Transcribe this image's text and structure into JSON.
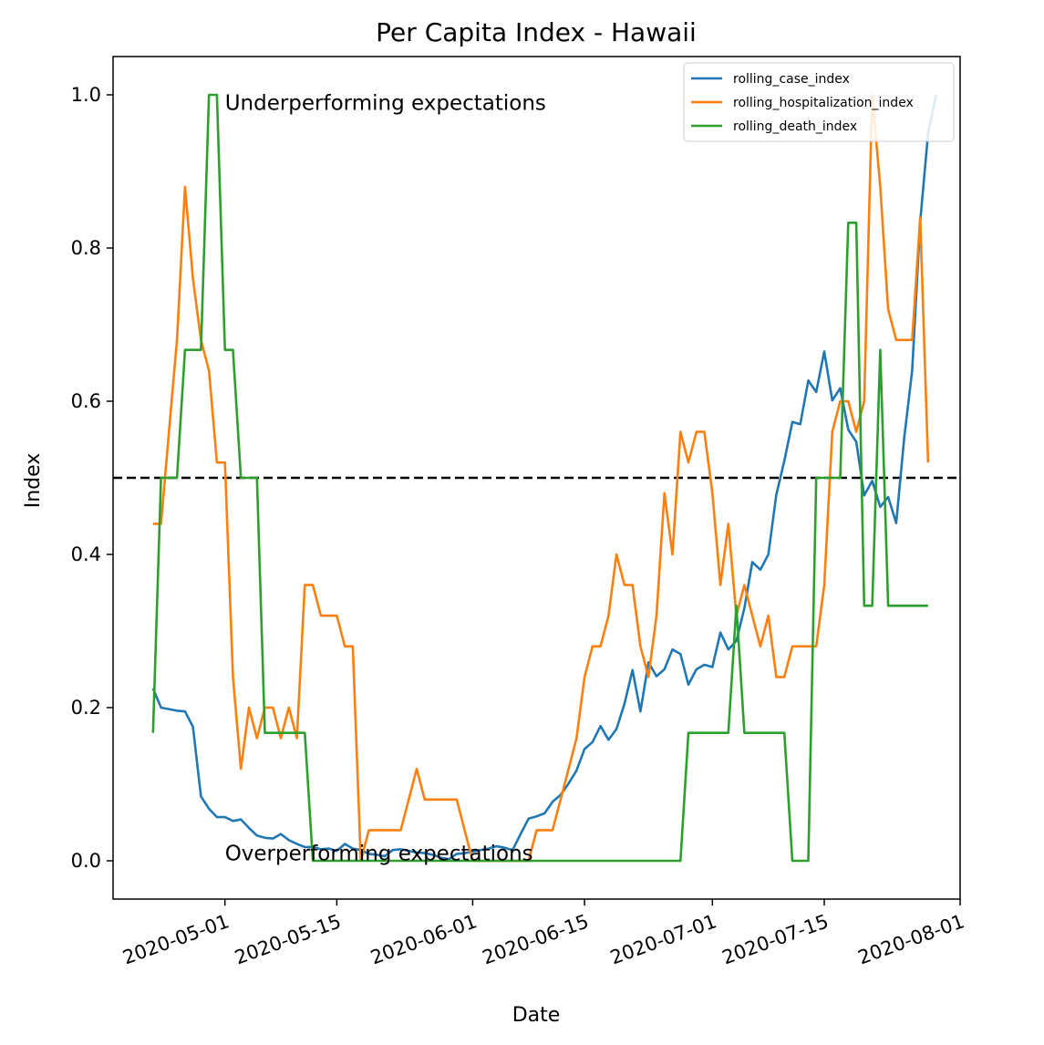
{
  "chart_data": {
    "type": "line",
    "title": "Per Capita Index - Hawaii",
    "xlabel": "Date",
    "ylabel": "Index",
    "x_axis": {
      "type": "date",
      "range": [
        "2020-04-17",
        "2020-08-01"
      ],
      "ticks": [
        "2020-05-01",
        "2020-05-15",
        "2020-06-01",
        "2020-06-15",
        "2020-07-01",
        "2020-07-15",
        "2020-08-01"
      ]
    },
    "y_axis": {
      "range": [
        -0.05,
        1.05
      ],
      "ticks": [
        0.0,
        0.2,
        0.4,
        0.6,
        0.8,
        1.0
      ],
      "tick_labels": [
        "0.0",
        "0.2",
        "0.4",
        "0.6",
        "0.8",
        "1.0"
      ]
    },
    "reference_line": {
      "y": 0.5,
      "style": "dashed",
      "color": "#000000"
    },
    "annotations": [
      {
        "text": "Underperforming expectations",
        "x": "2020-05-01",
        "y": 0.99
      },
      {
        "text": "Overperforming expectations",
        "x": "2020-05-01",
        "y": 0.01
      }
    ],
    "legend": {
      "position": "top-right"
    },
    "grid": false,
    "series": [
      {
        "name": "rolling_case_index",
        "color": "#1f77b4",
        "points": [
          [
            "2020-04-22",
            0.225
          ],
          [
            "2020-04-23",
            0.2
          ],
          [
            "2020-04-25",
            0.196
          ],
          [
            "2020-04-26",
            0.195
          ],
          [
            "2020-04-27",
            0.175
          ],
          [
            "2020-04-28",
            0.084
          ],
          [
            "2020-04-29",
            0.068
          ],
          [
            "2020-04-30",
            0.057
          ],
          [
            "2020-05-01",
            0.057
          ],
          [
            "2020-05-02",
            0.052
          ],
          [
            "2020-05-03",
            0.054
          ],
          [
            "2020-05-04",
            0.043
          ],
          [
            "2020-05-05",
            0.033
          ],
          [
            "2020-05-06",
            0.03
          ],
          [
            "2020-05-07",
            0.029
          ],
          [
            "2020-05-08",
            0.035
          ],
          [
            "2020-05-09",
            0.027
          ],
          [
            "2020-05-10",
            0.022
          ],
          [
            "2020-05-11",
            0.018
          ],
          [
            "2020-05-12",
            0.018
          ],
          [
            "2020-05-13",
            0.015
          ],
          [
            "2020-05-14",
            0.016
          ],
          [
            "2020-05-15",
            0.013
          ],
          [
            "2020-05-16",
            0.022
          ],
          [
            "2020-05-17",
            0.016
          ],
          [
            "2020-05-18",
            0.014
          ],
          [
            "2020-05-19",
            0.009
          ],
          [
            "2020-05-20",
            0.008
          ],
          [
            "2020-05-21",
            0.006
          ],
          [
            "2020-05-22",
            0.014
          ],
          [
            "2020-05-23",
            0.015
          ],
          [
            "2020-05-24",
            0.013
          ],
          [
            "2020-05-25",
            0.011
          ],
          [
            "2020-05-26",
            0.01
          ],
          [
            "2020-05-27",
            0.008
          ],
          [
            "2020-05-28",
            0.004
          ],
          [
            "2020-05-29",
            0.002
          ],
          [
            "2020-05-30",
            0.009
          ],
          [
            "2020-05-31",
            0.01
          ],
          [
            "2020-06-01",
            0.012
          ],
          [
            "2020-06-02",
            0.014
          ],
          [
            "2020-06-03",
            0.016
          ],
          [
            "2020-06-04",
            0.019
          ],
          [
            "2020-06-05",
            0.017
          ],
          [
            "2020-06-06",
            0.014
          ],
          [
            "2020-06-07",
            0.035
          ],
          [
            "2020-06-08",
            0.055
          ],
          [
            "2020-06-09",
            0.058
          ],
          [
            "2020-06-10",
            0.062
          ],
          [
            "2020-06-11",
            0.077
          ],
          [
            "2020-06-12",
            0.086
          ],
          [
            "2020-06-13",
            0.101
          ],
          [
            "2020-06-14",
            0.118
          ],
          [
            "2020-06-15",
            0.146
          ],
          [
            "2020-06-16",
            0.155
          ],
          [
            "2020-06-17",
            0.176
          ],
          [
            "2020-06-18",
            0.158
          ],
          [
            "2020-06-19",
            0.172
          ],
          [
            "2020-06-20",
            0.205
          ],
          [
            "2020-06-21",
            0.249
          ],
          [
            "2020-06-22",
            0.195
          ],
          [
            "2020-06-23",
            0.259
          ],
          [
            "2020-06-24",
            0.241
          ],
          [
            "2020-06-25",
            0.25
          ],
          [
            "2020-06-26",
            0.276
          ],
          [
            "2020-06-27",
            0.27
          ],
          [
            "2020-06-28",
            0.23
          ],
          [
            "2020-06-29",
            0.25
          ],
          [
            "2020-06-30",
            0.256
          ],
          [
            "2020-07-01",
            0.253
          ],
          [
            "2020-07-02",
            0.298
          ],
          [
            "2020-07-03",
            0.276
          ],
          [
            "2020-07-04",
            0.287
          ],
          [
            "2020-07-05",
            0.33
          ],
          [
            "2020-07-06",
            0.39
          ],
          [
            "2020-07-07",
            0.38
          ],
          [
            "2020-07-08",
            0.4
          ],
          [
            "2020-07-09",
            0.478
          ],
          [
            "2020-07-10",
            0.522
          ],
          [
            "2020-07-11",
            0.573
          ],
          [
            "2020-07-12",
            0.57
          ],
          [
            "2020-07-13",
            0.627
          ],
          [
            "2020-07-14",
            0.612
          ],
          [
            "2020-07-15",
            0.665
          ],
          [
            "2020-07-16",
            0.601
          ],
          [
            "2020-07-17",
            0.617
          ],
          [
            "2020-07-18",
            0.563
          ],
          [
            "2020-07-19",
            0.547
          ],
          [
            "2020-07-20",
            0.477
          ],
          [
            "2020-07-21",
            0.496
          ],
          [
            "2020-07-22",
            0.462
          ],
          [
            "2020-07-23",
            0.475
          ],
          [
            "2020-07-24",
            0.441
          ],
          [
            "2020-07-25",
            0.552
          ],
          [
            "2020-07-26",
            0.64
          ],
          [
            "2020-07-27",
            0.834
          ],
          [
            "2020-07-28",
            0.95
          ],
          [
            "2020-07-29",
            1.0
          ]
        ]
      },
      {
        "name": "rolling_hospitalization_index",
        "color": "#ff7f0e",
        "points": [
          [
            "2020-04-22",
            0.44
          ],
          [
            "2020-04-23",
            0.44
          ],
          [
            "2020-04-24",
            0.56
          ],
          [
            "2020-04-25",
            0.68
          ],
          [
            "2020-04-26",
            0.88
          ],
          [
            "2020-04-27",
            0.76
          ],
          [
            "2020-04-28",
            0.68
          ],
          [
            "2020-04-29",
            0.64
          ],
          [
            "2020-04-30",
            0.52
          ],
          [
            "2020-05-01",
            0.52
          ],
          [
            "2020-05-02",
            0.24
          ],
          [
            "2020-05-03",
            0.12
          ],
          [
            "2020-05-04",
            0.2
          ],
          [
            "2020-05-05",
            0.16
          ],
          [
            "2020-05-06",
            0.2
          ],
          [
            "2020-05-07",
            0.2
          ],
          [
            "2020-05-08",
            0.16
          ],
          [
            "2020-05-09",
            0.2
          ],
          [
            "2020-05-10",
            0.16
          ],
          [
            "2020-05-11",
            0.36
          ],
          [
            "2020-05-12",
            0.36
          ],
          [
            "2020-05-13",
            0.32
          ],
          [
            "2020-05-14",
            0.32
          ],
          [
            "2020-05-15",
            0.32
          ],
          [
            "2020-05-16",
            0.28
          ],
          [
            "2020-05-17",
            0.28
          ],
          [
            "2020-05-18",
            0.0
          ],
          [
            "2020-05-19",
            0.04
          ],
          [
            "2020-05-20",
            0.04
          ],
          [
            "2020-05-21",
            0.04
          ],
          [
            "2020-05-22",
            0.04
          ],
          [
            "2020-05-23",
            0.04
          ],
          [
            "2020-05-24",
            0.08
          ],
          [
            "2020-05-25",
            0.12
          ],
          [
            "2020-05-26",
            0.08
          ],
          [
            "2020-05-27",
            0.08
          ],
          [
            "2020-05-28",
            0.08
          ],
          [
            "2020-05-29",
            0.08
          ],
          [
            "2020-05-30",
            0.08
          ],
          [
            "2020-05-31",
            0.04
          ],
          [
            "2020-06-01",
            0.0
          ],
          [
            "2020-06-02",
            0.0
          ],
          [
            "2020-06-03",
            0.0
          ],
          [
            "2020-06-04",
            0.0
          ],
          [
            "2020-06-05",
            0.0
          ],
          [
            "2020-06-06",
            0.0
          ],
          [
            "2020-06-07",
            0.0
          ],
          [
            "2020-06-08",
            0.0
          ],
          [
            "2020-06-09",
            0.04
          ],
          [
            "2020-06-10",
            0.04
          ],
          [
            "2020-06-11",
            0.04
          ],
          [
            "2020-06-12",
            0.08
          ],
          [
            "2020-06-13",
            0.12
          ],
          [
            "2020-06-14",
            0.16
          ],
          [
            "2020-06-15",
            0.24
          ],
          [
            "2020-06-16",
            0.28
          ],
          [
            "2020-06-17",
            0.28
          ],
          [
            "2020-06-18",
            0.32
          ],
          [
            "2020-06-19",
            0.4
          ],
          [
            "2020-06-20",
            0.36
          ],
          [
            "2020-06-21",
            0.36
          ],
          [
            "2020-06-22",
            0.28
          ],
          [
            "2020-06-23",
            0.24
          ],
          [
            "2020-06-24",
            0.32
          ],
          [
            "2020-06-25",
            0.48
          ],
          [
            "2020-06-26",
            0.4
          ],
          [
            "2020-06-27",
            0.56
          ],
          [
            "2020-06-28",
            0.52
          ],
          [
            "2020-06-29",
            0.56
          ],
          [
            "2020-06-30",
            0.56
          ],
          [
            "2020-07-01",
            0.48
          ],
          [
            "2020-07-02",
            0.36
          ],
          [
            "2020-07-03",
            0.44
          ],
          [
            "2020-07-04",
            0.32
          ],
          [
            "2020-07-05",
            0.36
          ],
          [
            "2020-07-06",
            0.32
          ],
          [
            "2020-07-07",
            0.28
          ],
          [
            "2020-07-08",
            0.32
          ],
          [
            "2020-07-09",
            0.24
          ],
          [
            "2020-07-10",
            0.24
          ],
          [
            "2020-07-11",
            0.28
          ],
          [
            "2020-07-12",
            0.28
          ],
          [
            "2020-07-13",
            0.28
          ],
          [
            "2020-07-14",
            0.28
          ],
          [
            "2020-07-15",
            0.36
          ],
          [
            "2020-07-16",
            0.56
          ],
          [
            "2020-07-17",
            0.6
          ],
          [
            "2020-07-18",
            0.6
          ],
          [
            "2020-07-19",
            0.56
          ],
          [
            "2020-07-20",
            0.6
          ],
          [
            "2020-07-21",
            1.0
          ],
          [
            "2020-07-22",
            0.88
          ],
          [
            "2020-07-23",
            0.72
          ],
          [
            "2020-07-24",
            0.68
          ],
          [
            "2020-07-25",
            0.68
          ],
          [
            "2020-07-26",
            0.68
          ],
          [
            "2020-07-27",
            0.84
          ],
          [
            "2020-07-28",
            0.52
          ]
        ]
      },
      {
        "name": "rolling_death_index",
        "color": "#2ca02c",
        "points": [
          [
            "2020-04-22",
            0.167
          ],
          [
            "2020-04-23",
            0.5
          ],
          [
            "2020-04-24",
            0.5
          ],
          [
            "2020-04-25",
            0.5
          ],
          [
            "2020-04-26",
            0.667
          ],
          [
            "2020-04-27",
            0.667
          ],
          [
            "2020-04-28",
            0.667
          ],
          [
            "2020-04-29",
            1.0
          ],
          [
            "2020-04-30",
            1.0
          ],
          [
            "2020-05-01",
            0.667
          ],
          [
            "2020-05-02",
            0.667
          ],
          [
            "2020-05-03",
            0.5
          ],
          [
            "2020-05-04",
            0.5
          ],
          [
            "2020-05-05",
            0.5
          ],
          [
            "2020-05-06",
            0.167
          ],
          [
            "2020-05-07",
            0.167
          ],
          [
            "2020-05-08",
            0.167
          ],
          [
            "2020-05-09",
            0.167
          ],
          [
            "2020-05-10",
            0.167
          ],
          [
            "2020-05-11",
            0.167
          ],
          [
            "2020-05-12",
            0.0
          ],
          [
            "2020-06-27",
            0.0
          ],
          [
            "2020-06-28",
            0.167
          ],
          [
            "2020-07-03",
            0.167
          ],
          [
            "2020-07-04",
            0.333
          ],
          [
            "2020-07-05",
            0.167
          ],
          [
            "2020-07-10",
            0.167
          ],
          [
            "2020-07-11",
            0.0
          ],
          [
            "2020-07-12",
            0.0
          ],
          [
            "2020-07-13",
            0.0
          ],
          [
            "2020-07-14",
            0.5
          ],
          [
            "2020-07-17",
            0.5
          ],
          [
            "2020-07-18",
            0.833
          ],
          [
            "2020-07-19",
            0.833
          ],
          [
            "2020-07-20",
            0.333
          ],
          [
            "2020-07-21",
            0.333
          ],
          [
            "2020-07-22",
            0.667
          ],
          [
            "2020-07-23",
            0.333
          ],
          [
            "2020-07-28",
            0.333
          ]
        ]
      }
    ]
  }
}
